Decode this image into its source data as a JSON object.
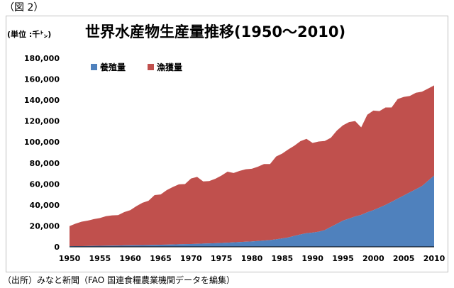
{
  "figure_label": "（図 2）",
  "source_note": "（出所）みなと新聞（FAO 国連食糧農業機関データを編集）",
  "colors": {
    "aquaculture": "#4f81bd",
    "capture": "#c0504d",
    "frame": "#bfbfbf"
  },
  "chart_data": {
    "type": "area",
    "title": "世界水産物生産量推移(1950～2010)",
    "ylabel": "(単位 :千㌧)",
    "xlabel": "",
    "stacked": true,
    "legend_position": "top-left",
    "grid": false,
    "xlim": [
      1950,
      2010
    ],
    "ylim": [
      0,
      180000
    ],
    "y_ticks": [
      "0",
      "20,000",
      "40,000",
      "60,000",
      "80,000",
      "100,000",
      "120,000",
      "140,000",
      "160,000",
      "180,000"
    ],
    "x_ticks": [
      "1950",
      "1955",
      "1960",
      "1965",
      "1970",
      "1975",
      "1980",
      "1985",
      "1990",
      "1995",
      "2000",
      "2005",
      "2010"
    ],
    "x": [
      1950,
      1951,
      1952,
      1953,
      1954,
      1955,
      1956,
      1957,
      1958,
      1959,
      1960,
      1961,
      1962,
      1963,
      1964,
      1965,
      1966,
      1967,
      1968,
      1969,
      1970,
      1971,
      1972,
      1973,
      1974,
      1975,
      1976,
      1977,
      1978,
      1979,
      1980,
      1981,
      1982,
      1983,
      1984,
      1985,
      1986,
      1987,
      1988,
      1989,
      1990,
      1991,
      1992,
      1993,
      1994,
      1995,
      1996,
      1997,
      1998,
      1999,
      2000,
      2001,
      2002,
      2003,
      2004,
      2005,
      2006,
      2007,
      2008,
      2009,
      2010
    ],
    "series": [
      {
        "name": "養殖量",
        "color": "#4f81bd",
        "values": [
          600,
          650,
          700,
          800,
          900,
          1000,
          1100,
          1200,
          1300,
          1400,
          1500,
          1600,
          1700,
          1800,
          1900,
          2000,
          2150,
          2300,
          2450,
          2600,
          2700,
          2900,
          3100,
          3300,
          3500,
          3700,
          4000,
          4300,
          4600,
          4900,
          5200,
          5600,
          6000,
          6500,
          7200,
          8000,
          9000,
          10500,
          11800,
          13000,
          13600,
          14500,
          16000,
          19000,
          22000,
          25000,
          27000,
          29000,
          30500,
          33000,
          35000,
          37500,
          40000,
          43000,
          46000,
          49000,
          52000,
          55000,
          58000,
          63000,
          68000
        ]
      },
      {
        "name": "漁獲量",
        "color": "#c0504d",
        "values": [
          19200,
          21500,
          23300,
          24200,
          25600,
          26500,
          28200,
          28800,
          29000,
          31800,
          33500,
          37200,
          40300,
          42200,
          47500,
          48000,
          52000,
          54800,
          57200,
          57300,
          62500,
          63800,
          59300,
          59500,
          61500,
          64300,
          67700,
          66200,
          67900,
          69100,
          69300,
          70900,
          73000,
          72500,
          79000,
          81000,
          84000,
          86000,
          89000,
          90000,
          85500,
          86000,
          85000,
          85000,
          89000,
          91000,
          92000,
          91000,
          83500,
          93000,
          95000,
          92000,
          93000,
          90000,
          95000,
          94000,
          92000,
          92000,
          90000,
          88000,
          86000
        ]
      }
    ]
  }
}
